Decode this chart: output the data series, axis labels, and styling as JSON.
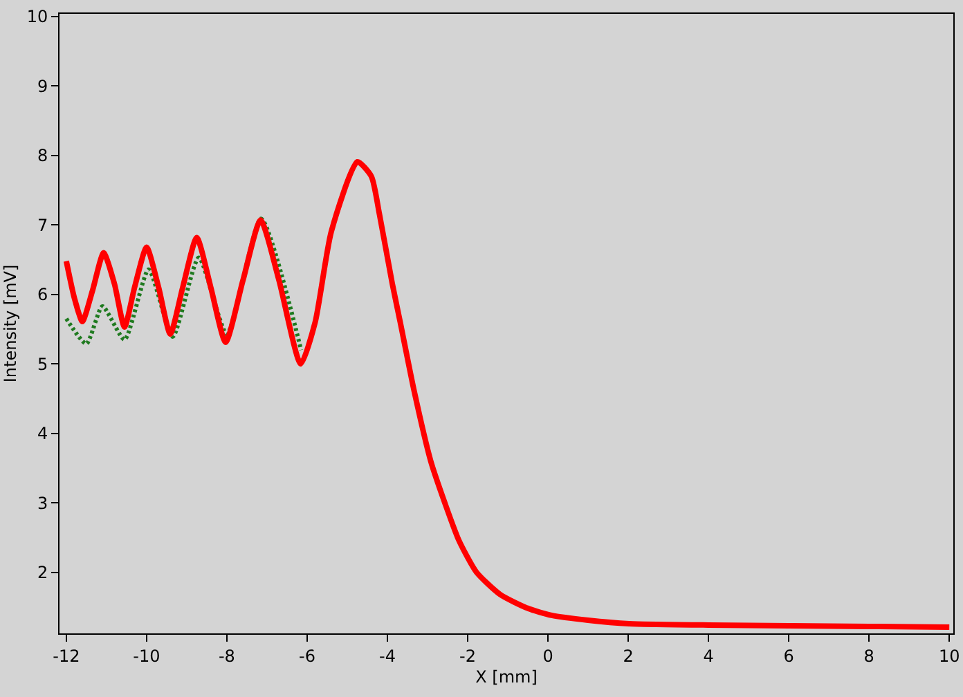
{
  "chart_data": {
    "type": "line",
    "xlabel": "X [mm]",
    "ylabel": "Intensity [mV]",
    "xlim": [
      -12.17,
      10.1
    ],
    "ylim": [
      1.12,
      10.04
    ],
    "xticks": [
      -12,
      -10,
      -8,
      -6,
      -4,
      -2,
      0,
      2,
      4,
      6,
      8,
      10
    ],
    "yticks": [
      2,
      3,
      4,
      5,
      6,
      7,
      8,
      9,
      10
    ],
    "series": [
      {
        "color": "#1f7a1f",
        "line_style": "dotted",
        "x": [
          -12,
          -11.5,
          -11.1,
          -10.55,
          -9.95,
          -9.35,
          -8.7,
          -8.0,
          -7.15,
          -6.15
        ],
        "values": [
          5.65,
          5.29,
          5.83,
          5.35,
          6.36,
          5.39,
          6.53,
          5.43,
          7.09,
          5.2
        ]
      },
      {
        "color": "#ff0000",
        "line_style": "solid",
        "x": [
          -12,
          -11.8,
          -11.6,
          -11.35,
          -11.07,
          -10.8,
          -10.55,
          -10.3,
          -10.0,
          -9.7,
          -9.41,
          -9.1,
          -8.75,
          -8.4,
          -8.03,
          -7.6,
          -7.16,
          -6.7,
          -6.16,
          -5.8,
          -5.4,
          -4.75,
          -4.4,
          -4.2,
          -3.88,
          -3.68,
          -3.33,
          -2.92,
          -2.57,
          -2.22,
          -1.78,
          -1.19,
          -0.5,
          0.09,
          1,
          2.02,
          4,
          6,
          8,
          10
        ],
        "values": [
          6.48,
          5.95,
          5.61,
          6.05,
          6.6,
          6.15,
          5.53,
          6.1,
          6.68,
          6.1,
          5.43,
          6.1,
          6.82,
          6.1,
          5.31,
          6.2,
          7.07,
          6.2,
          5.0,
          5.6,
          6.9,
          7.91,
          7.7,
          7.16,
          6.16,
          5.6,
          4.6,
          3.6,
          3.0,
          2.46,
          2.0,
          1.68,
          1.48,
          1.38,
          1.31,
          1.26,
          1.24,
          1.23,
          1.22,
          1.21
        ]
      }
    ]
  }
}
